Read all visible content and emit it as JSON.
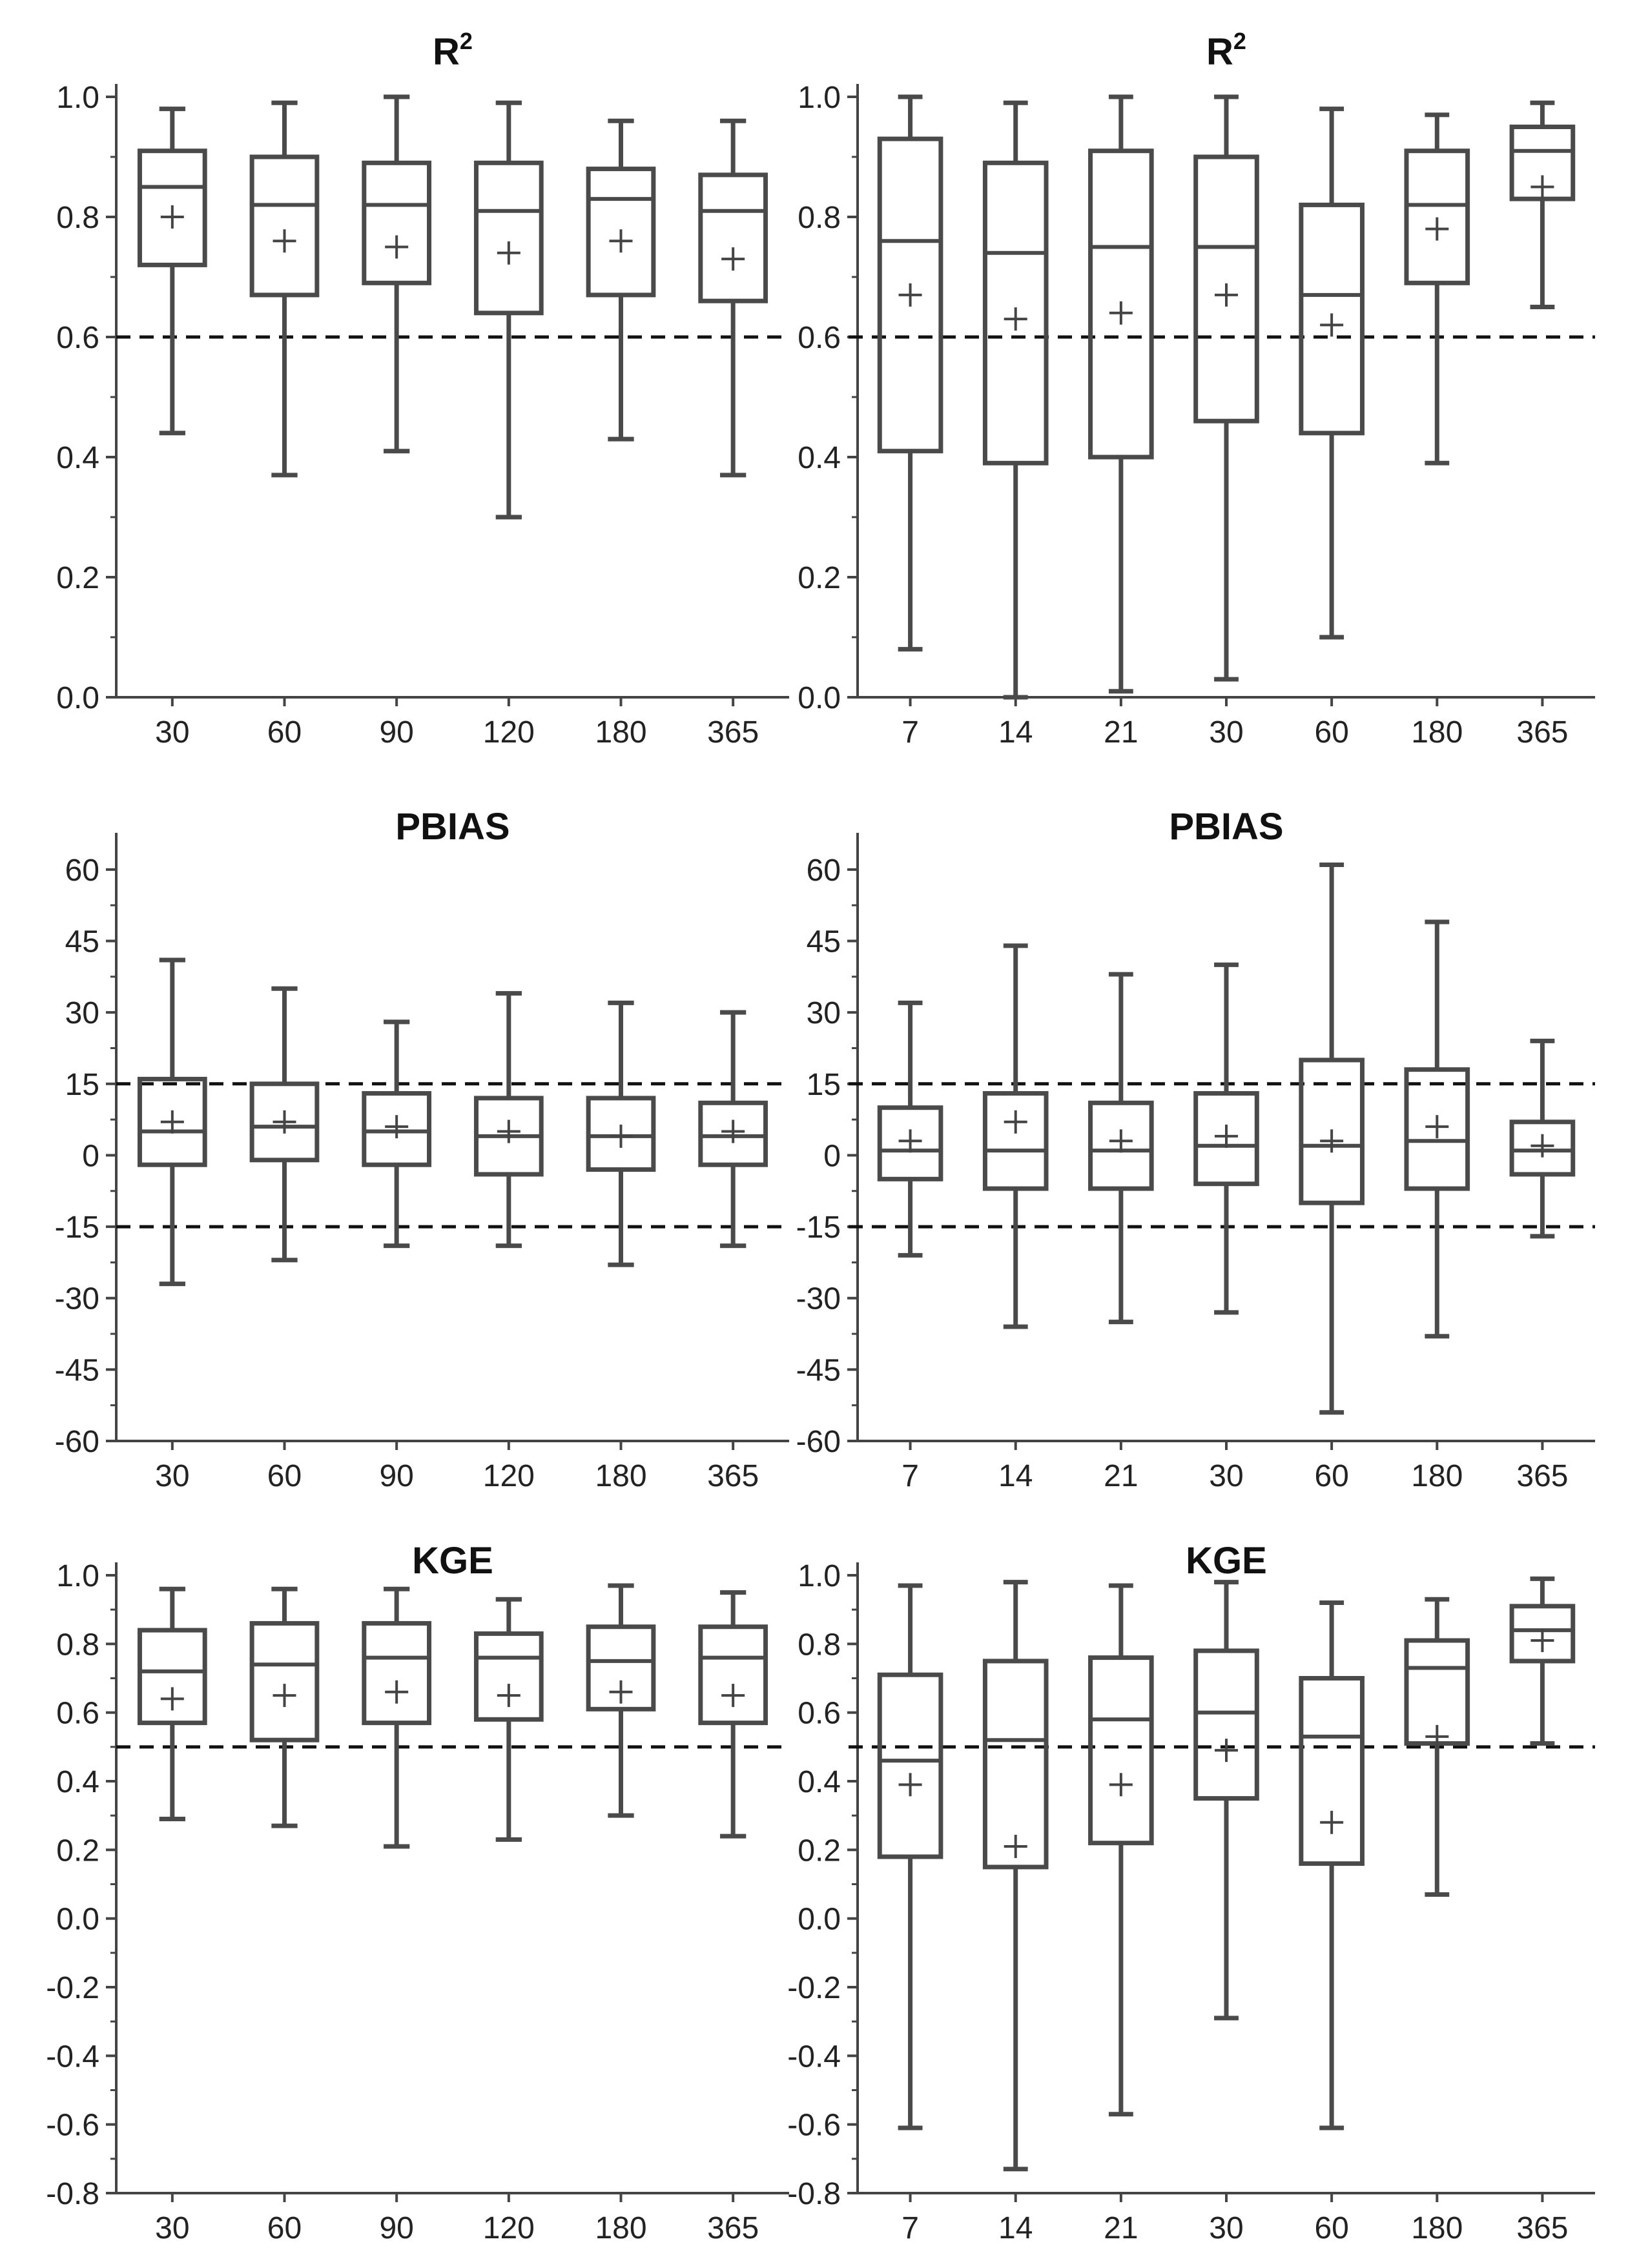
{
  "chart_data": [
    {
      "type": "boxplot",
      "title": "R2",
      "title_main": "R",
      "title_sup": "2",
      "categories": [
        "30",
        "60",
        "90",
        "120",
        "180",
        "365"
      ],
      "ylim": [
        0.0,
        1.0
      ],
      "yticks": [
        0.0,
        0.2,
        0.4,
        0.6,
        0.8,
        1.0
      ],
      "ytick_labels": [
        "0.0",
        "0.2",
        "0.4",
        "0.6",
        "0.8",
        "1.0"
      ],
      "reference_lines": [
        0.6
      ],
      "boxes": [
        {
          "min": 0.44,
          "q1": 0.72,
          "median": 0.85,
          "q3": 0.91,
          "max": 0.98,
          "mean": 0.8
        },
        {
          "min": 0.37,
          "q1": 0.67,
          "median": 0.82,
          "q3": 0.9,
          "max": 0.99,
          "mean": 0.76
        },
        {
          "min": 0.41,
          "q1": 0.69,
          "median": 0.82,
          "q3": 0.89,
          "max": 1.0,
          "mean": 0.75
        },
        {
          "min": 0.3,
          "q1": 0.64,
          "median": 0.81,
          "q3": 0.89,
          "max": 0.99,
          "mean": 0.74
        },
        {
          "min": 0.43,
          "q1": 0.67,
          "median": 0.83,
          "q3": 0.88,
          "max": 0.96,
          "mean": 0.76
        },
        {
          "min": 0.37,
          "q1": 0.66,
          "median": 0.81,
          "q3": 0.87,
          "max": 0.96,
          "mean": 0.73
        }
      ]
    },
    {
      "type": "boxplot",
      "title": "R2",
      "title_main": "R",
      "title_sup": "2",
      "categories": [
        "7",
        "14",
        "21",
        "30",
        "60",
        "180",
        "365"
      ],
      "ylim": [
        0.0,
        1.0
      ],
      "yticks": [
        0.0,
        0.2,
        0.4,
        0.6,
        0.8,
        1.0
      ],
      "ytick_labels": [
        "0.0",
        "0.2",
        "0.4",
        "0.6",
        "0.8",
        "1.0"
      ],
      "reference_lines": [
        0.6
      ],
      "boxes": [
        {
          "min": 0.08,
          "q1": 0.41,
          "median": 0.76,
          "q3": 0.93,
          "max": 1.0,
          "mean": 0.67
        },
        {
          "min": 0.0,
          "q1": 0.39,
          "median": 0.74,
          "q3": 0.89,
          "max": 0.99,
          "mean": 0.63
        },
        {
          "min": 0.01,
          "q1": 0.4,
          "median": 0.75,
          "q3": 0.91,
          "max": 1.0,
          "mean": 0.64
        },
        {
          "min": 0.03,
          "q1": 0.46,
          "median": 0.75,
          "q3": 0.9,
          "max": 1.0,
          "mean": 0.67
        },
        {
          "min": 0.1,
          "q1": 0.44,
          "median": 0.67,
          "q3": 0.82,
          "max": 0.98,
          "mean": 0.62
        },
        {
          "min": 0.39,
          "q1": 0.69,
          "median": 0.82,
          "q3": 0.91,
          "max": 0.97,
          "mean": 0.78
        },
        {
          "min": 0.65,
          "q1": 0.83,
          "median": 0.91,
          "q3": 0.95,
          "max": 0.99,
          "mean": 0.85
        }
      ]
    },
    {
      "type": "boxplot",
      "title": "PBIAS",
      "title_main": "PBIAS",
      "title_sup": "",
      "categories": [
        "30",
        "60",
        "90",
        "120",
        "180",
        "365"
      ],
      "ylim": [
        -60,
        65
      ],
      "yticks": [
        -60,
        -45,
        -30,
        -15,
        0,
        15,
        30,
        45,
        60
      ],
      "ytick_labels": [
        "-60",
        "-45",
        "-30",
        "-15",
        "0",
        "15",
        "30",
        "45",
        "60"
      ],
      "reference_lines": [
        15,
        -15
      ],
      "boxes": [
        {
          "min": -27,
          "q1": -2,
          "median": 5,
          "q3": 16,
          "max": 41,
          "mean": 7
        },
        {
          "min": -22,
          "q1": -1,
          "median": 6,
          "q3": 15,
          "max": 35,
          "mean": 7
        },
        {
          "min": -19,
          "q1": -2,
          "median": 5,
          "q3": 13,
          "max": 28,
          "mean": 6
        },
        {
          "min": -19,
          "q1": -4,
          "median": 4,
          "q3": 12,
          "max": 34,
          "mean": 5
        },
        {
          "min": -23,
          "q1": -3,
          "median": 4,
          "q3": 12,
          "max": 32,
          "mean": 4
        },
        {
          "min": -19,
          "q1": -2,
          "median": 4,
          "q3": 11,
          "max": 30,
          "mean": 5
        }
      ]
    },
    {
      "type": "boxplot",
      "title": "PBIAS",
      "title_main": "PBIAS",
      "title_sup": "",
      "categories": [
        "7",
        "14",
        "21",
        "30",
        "60",
        "180",
        "365"
      ],
      "ylim": [
        -60,
        65
      ],
      "yticks": [
        -60,
        -45,
        -30,
        -15,
        0,
        15,
        30,
        45,
        60
      ],
      "ytick_labels": [
        "-60",
        "-45",
        "-30",
        "-15",
        "0",
        "15",
        "30",
        "45",
        "60"
      ],
      "reference_lines": [
        15,
        -15
      ],
      "boxes": [
        {
          "min": -21,
          "q1": -5,
          "median": 1,
          "q3": 10,
          "max": 32,
          "mean": 3
        },
        {
          "min": -36,
          "q1": -7,
          "median": 1,
          "q3": 13,
          "max": 44,
          "mean": 7
        },
        {
          "min": -35,
          "q1": -7,
          "median": 1,
          "q3": 11,
          "max": 38,
          "mean": 3
        },
        {
          "min": -33,
          "q1": -6,
          "median": 2,
          "q3": 13,
          "max": 40,
          "mean": 4
        },
        {
          "min": -54,
          "q1": -10,
          "median": 2,
          "q3": 20,
          "max": 61,
          "mean": 3
        },
        {
          "min": -38,
          "q1": -7,
          "median": 3,
          "q3": 18,
          "max": 49,
          "mean": 6
        },
        {
          "min": -17,
          "q1": -4,
          "median": 1,
          "q3": 7,
          "max": 24,
          "mean": 2
        }
      ]
    },
    {
      "type": "boxplot",
      "title": "KGE",
      "title_main": "KGE",
      "title_sup": "",
      "categories": [
        "30",
        "60",
        "90",
        "120",
        "180",
        "365"
      ],
      "ylim": [
        -0.8,
        1.0
      ],
      "yticks": [
        -0.8,
        -0.6,
        -0.4,
        -0.2,
        0.0,
        0.2,
        0.4,
        0.6,
        0.8,
        1.0
      ],
      "ytick_labels": [
        "-0.8",
        "-0.6",
        "-0.4",
        "-0.2",
        "0.0",
        "0.2",
        "0.4",
        "0.6",
        "0.8",
        "1.0"
      ],
      "reference_lines": [
        0.5
      ],
      "boxes": [
        {
          "min": 0.29,
          "q1": 0.57,
          "median": 0.72,
          "q3": 0.84,
          "max": 0.96,
          "mean": 0.64
        },
        {
          "min": 0.27,
          "q1": 0.52,
          "median": 0.74,
          "q3": 0.86,
          "max": 0.96,
          "mean": 0.65
        },
        {
          "min": 0.21,
          "q1": 0.57,
          "median": 0.76,
          "q3": 0.86,
          "max": 0.96,
          "mean": 0.66
        },
        {
          "min": 0.23,
          "q1": 0.58,
          "median": 0.76,
          "q3": 0.83,
          "max": 0.93,
          "mean": 0.65
        },
        {
          "min": 0.3,
          "q1": 0.61,
          "median": 0.75,
          "q3": 0.85,
          "max": 0.97,
          "mean": 0.66
        },
        {
          "min": 0.24,
          "q1": 0.57,
          "median": 0.76,
          "q3": 0.85,
          "max": 0.95,
          "mean": 0.65
        }
      ]
    },
    {
      "type": "boxplot",
      "title": "KGE",
      "title_main": "KGE",
      "title_sup": "",
      "categories": [
        "7",
        "14",
        "21",
        "30",
        "60",
        "180",
        "365"
      ],
      "ylim": [
        -0.8,
        1.0
      ],
      "yticks": [
        -0.8,
        -0.6,
        -0.4,
        -0.2,
        0.0,
        0.2,
        0.4,
        0.6,
        0.8,
        1.0
      ],
      "ytick_labels": [
        "-0.8",
        "-0.6",
        "-0.4",
        "-0.2",
        "0.0",
        "0.2",
        "0.4",
        "0.6",
        "0.8",
        "1.0"
      ],
      "reference_lines": [
        0.5
      ],
      "boxes": [
        {
          "min": -0.61,
          "q1": 0.18,
          "median": 0.46,
          "q3": 0.71,
          "max": 0.97,
          "mean": 0.39
        },
        {
          "min": -0.73,
          "q1": 0.15,
          "median": 0.52,
          "q3": 0.75,
          "max": 0.98,
          "mean": 0.21
        },
        {
          "min": -0.57,
          "q1": 0.22,
          "median": 0.58,
          "q3": 0.76,
          "max": 0.97,
          "mean": 0.39
        },
        {
          "min": -0.29,
          "q1": 0.35,
          "median": 0.6,
          "q3": 0.78,
          "max": 0.98,
          "mean": 0.49
        },
        {
          "min": -0.61,
          "q1": 0.16,
          "median": 0.53,
          "q3": 0.7,
          "max": 0.92,
          "mean": 0.28
        },
        {
          "min": 0.07,
          "q1": 0.51,
          "median": 0.73,
          "q3": 0.81,
          "max": 0.93,
          "mean": 0.53
        },
        {
          "min": 0.51,
          "q1": 0.75,
          "median": 0.84,
          "q3": 0.91,
          "max": 0.99,
          "mean": 0.81
        }
      ]
    }
  ]
}
